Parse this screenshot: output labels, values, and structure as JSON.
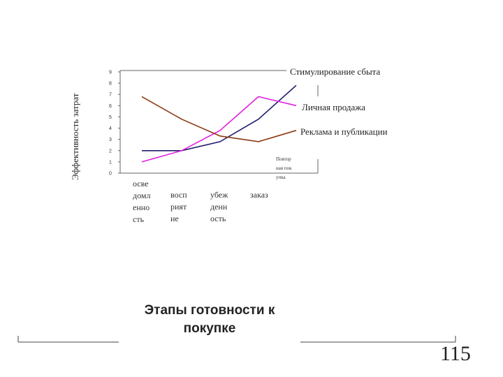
{
  "chart_data": {
    "type": "line",
    "title": "",
    "xlabel": "Этапы готовности к покупке",
    "ylabel": "Эффективность затрат",
    "categories": [
      "осведомленность",
      "восприятие",
      "убежденность",
      "заказ",
      "Повторная покупка"
    ],
    "series": [
      {
        "name": "Стимулирование сбыта",
        "color": "#1e1e6e",
        "values": [
          2.0,
          2.0,
          2.8,
          4.8,
          7.8
        ]
      },
      {
        "name": "Личная продажа",
        "color": "#e020e0",
        "values": [
          1.0,
          2.0,
          3.8,
          6.8,
          6.0
        ]
      },
      {
        "name": "Реклама и публикации",
        "color": "#8b3a10",
        "values": [
          6.8,
          4.8,
          3.3,
          2.8,
          3.8
        ]
      }
    ],
    "ylim": [
      0,
      9
    ],
    "yticks": [
      "0",
      "1",
      "2",
      "3",
      "4",
      "5",
      "6",
      "7",
      "8",
      "9"
    ],
    "grid": false
  },
  "page_number": "115"
}
